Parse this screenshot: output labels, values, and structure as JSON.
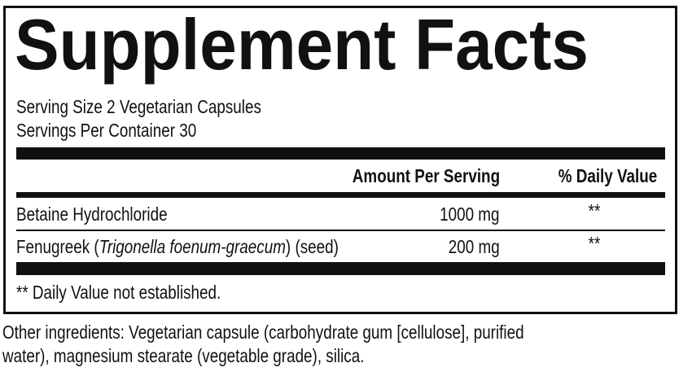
{
  "title": "Supplement Facts",
  "serving_size": "Serving Size 2 Vegetarian Capsules",
  "servings_per_container": "Servings Per Container 30",
  "table": {
    "headers": {
      "amount": "Amount Per Serving",
      "daily_value": "% Daily Value"
    },
    "rows": [
      {
        "name": "Betaine Hydrochloride",
        "name_italic": "",
        "name_suffix": "",
        "amount": "1000 mg",
        "daily_value": "**"
      },
      {
        "name": "Fenugreek (",
        "name_italic": "Trigonella foenum-graecum",
        "name_suffix": ") (seed)",
        "amount": "200 mg",
        "daily_value": "**"
      }
    ]
  },
  "footnote": "** Daily Value not established.",
  "other_ingredients": {
    "line1": "Other ingredients: Vegetarian capsule (carbohydrate gum [cellulose], purified",
    "line2": "water), magnesium stearate (vegetable grade), silica."
  }
}
